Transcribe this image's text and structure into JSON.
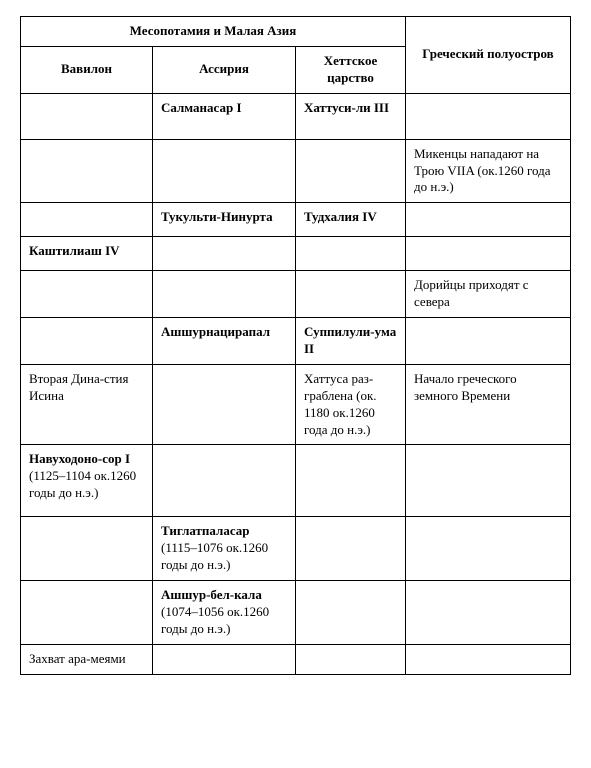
{
  "headers": {
    "region1": "Месопотамия и Малая Азия",
    "region2": "Греческий полуостров",
    "babylon": "Вавилон",
    "assyria": "Ассирия",
    "hittite": "Хеттское царство"
  },
  "rows": [
    {
      "c1": "",
      "c2": "Салманасар I",
      "c2b": true,
      "c3": "Хаттуси-ли III",
      "c3b": true,
      "c4": ""
    },
    {
      "c1": "",
      "c2": "",
      "c3": "",
      "c4": "Микенцы нападают на Трою VIIA (ок.1260 года до н.э.)"
    },
    {
      "c1": "",
      "c2": "Тукульти-Нинурта",
      "c2b": true,
      "c3": "Тудхалия IV",
      "c3b": true,
      "c4": ""
    },
    {
      "c1": "Каштилиаш IV",
      "c1b": true,
      "c2": "",
      "c3": "",
      "c4": ""
    },
    {
      "c1": "",
      "c2": "",
      "c3": "",
      "c4": " Дорийцы приходят с севера"
    },
    {
      "c1": "",
      "c2": "Ашшурнацирапал",
      "c2b": true,
      "c3": "Суппилули-ума II",
      "c3b": true,
      "c4": ""
    },
    {
      "c1": "Вторая Дина-стия Исина",
      "c2": "",
      "c3": "Хаттуса раз-граблена (ок. 1180  ок.1260 года до н.э.)",
      "c4": "Начало греческого земного Времени"
    },
    {
      "c1": "Навуходоно-сор I (1125–1104 ок.1260  годы до н.э.)",
      "c1b": true,
      "c2": "",
      "c3": "",
      "c4": ""
    },
    {
      "c1": "",
      "c2": "Тиглатпаласар (1115–1076 ок.1260 годы до н.э.)",
      "c2b": true,
      "c3": "",
      "c4": ""
    },
    {
      "c1": "",
      "c2": "Ашшур-бел-кала (1074–1056 ок.1260 годы до н.э.)",
      "c2b": true,
      "c3": "",
      "c4": ""
    },
    {
      "c1": "Захват ара-меями",
      "c2": "",
      "c3": "",
      "c4": ""
    }
  ]
}
